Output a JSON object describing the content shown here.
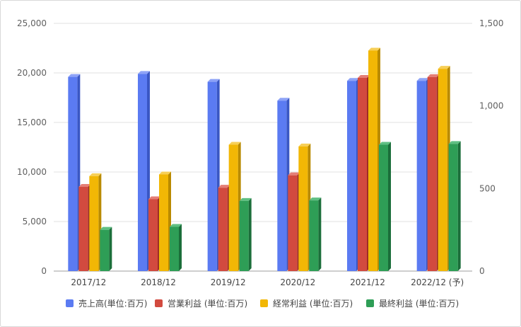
{
  "chart_data": {
    "type": "bar",
    "categories": [
      "2017/12",
      "2018/12",
      "2019/12",
      "2020/12",
      "2021/12",
      "2022/12 (予)"
    ],
    "y_left": {
      "ylim": [
        0,
        25000
      ],
      "ticks": [
        "0",
        "5,000",
        "10,000",
        "15,000",
        "20,000",
        "25,000"
      ]
    },
    "y_right": {
      "ylim": [
        0,
        1500
      ],
      "ticks": [
        "0",
        "500",
        "1,000",
        "1,500"
      ]
    },
    "series": [
      {
        "name": "売上高(単位:百万)",
        "axis": "left",
        "color": "#5b7bf2",
        "side": "#3a57c4",
        "top": "#8ea3f7",
        "values": [
          19600,
          19900,
          19100,
          17200,
          19200,
          19200
        ]
      },
      {
        "name": "営業利益 (単位:百万)",
        "axis": "right",
        "color": "#d24a3f",
        "side": "#9e2e25",
        "top": "#e57e76",
        "values": [
          510,
          435,
          505,
          580,
          1170,
          1175
        ]
      },
      {
        "name": "経常利益 (単位:百万)",
        "axis": "right",
        "color": "#f2b705",
        "side": "#b98a00",
        "top": "#f7cf57",
        "values": [
          575,
          585,
          765,
          755,
          1335,
          1225
        ]
      },
      {
        "name": "最終利益 (単位:百万)",
        "axis": "right",
        "color": "#2e9e56",
        "side": "#1b6e3a",
        "top": "#5fbf82",
        "values": [
          250,
          268,
          425,
          428,
          765,
          770
        ]
      }
    ],
    "grid": true,
    "legend_position": "bottom"
  }
}
